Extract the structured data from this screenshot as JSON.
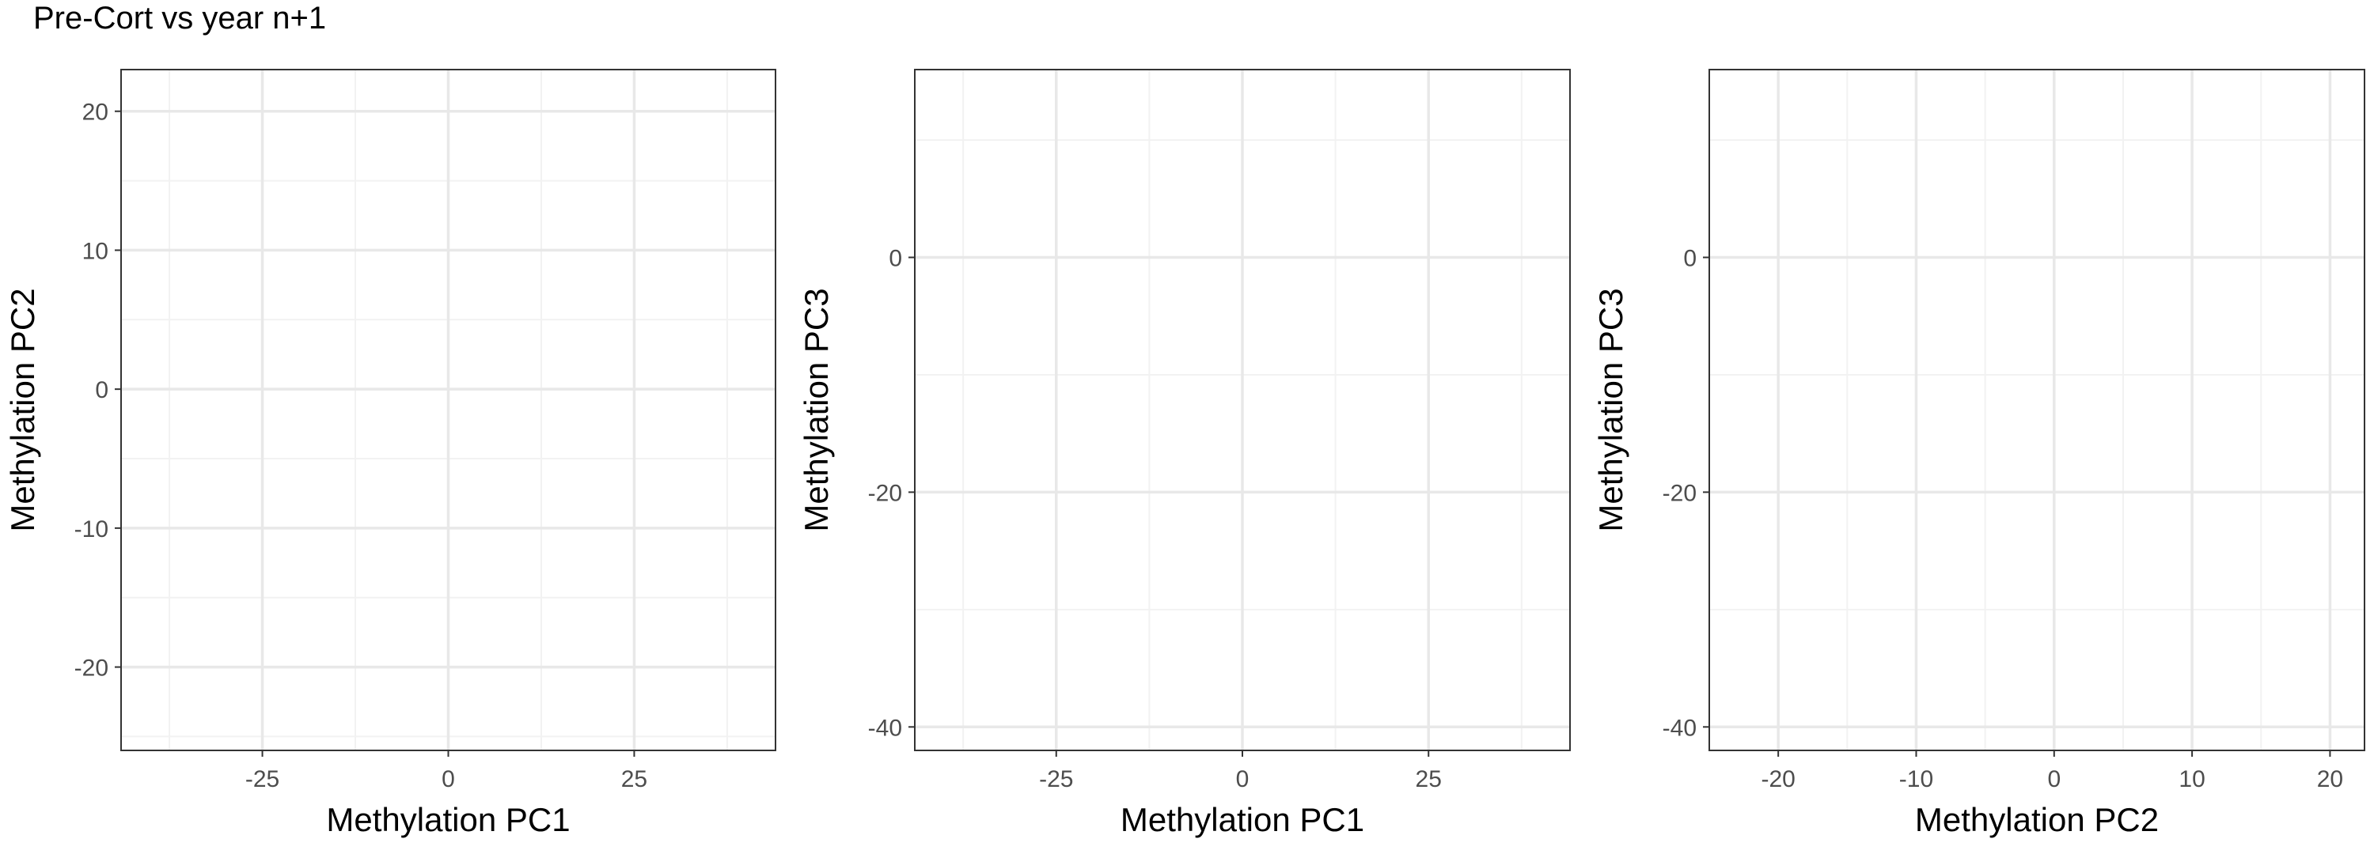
{
  "figure_title": "Pre-Cort vs year n+1",
  "colors": {
    "panel_border": "#333333",
    "grid_major": "#e8e8e8",
    "grid_minor": "#f2f2f2",
    "tick_mark": "#333333",
    "tick_text": "#4d4d4d",
    "title_text": "#000000"
  },
  "chart_data": [
    {
      "type": "scatter",
      "title": "",
      "xlabel": "Methylation PC1",
      "ylabel": "Methylation PC2",
      "xlim": [
        -44,
        44
      ],
      "ylim": [
        -26,
        23
      ],
      "xticks": [
        {
          "v": -25,
          "label": "-25"
        },
        {
          "v": 0,
          "label": "0"
        },
        {
          "v": 25,
          "label": "25"
        }
      ],
      "yticks": [
        {
          "v": -20,
          "label": "-20"
        },
        {
          "v": -10,
          "label": "-10"
        },
        {
          "v": 0,
          "label": "0"
        },
        {
          "v": 10,
          "label": "10"
        },
        {
          "v": 20,
          "label": "20"
        }
      ],
      "grid": true,
      "series": []
    },
    {
      "type": "scatter",
      "title": "",
      "xlabel": "Methylation PC1",
      "ylabel": "Methylation PC3",
      "xlim": [
        -44,
        44
      ],
      "ylim": [
        -42,
        16
      ],
      "xticks": [
        {
          "v": -25,
          "label": "-25"
        },
        {
          "v": 0,
          "label": "0"
        },
        {
          "v": 25,
          "label": "25"
        }
      ],
      "yticks": [
        {
          "v": -40,
          "label": "-40"
        },
        {
          "v": -20,
          "label": "-20"
        },
        {
          "v": 0,
          "label": "0"
        }
      ],
      "grid": true,
      "series": []
    },
    {
      "type": "scatter",
      "title": "",
      "xlabel": "Methylation PC2",
      "ylabel": "Methylation PC3",
      "xlim": [
        -25,
        22.5
      ],
      "ylim": [
        -42,
        16
      ],
      "xticks": [
        {
          "v": -20,
          "label": "-20"
        },
        {
          "v": -10,
          "label": "-10"
        },
        {
          "v": 0,
          "label": "0"
        },
        {
          "v": 10,
          "label": "10"
        },
        {
          "v": 20,
          "label": "20"
        }
      ],
      "yticks": [
        {
          "v": -40,
          "label": "-40"
        },
        {
          "v": -20,
          "label": "-20"
        },
        {
          "v": 0,
          "label": "0"
        }
      ],
      "grid": true,
      "series": []
    }
  ]
}
